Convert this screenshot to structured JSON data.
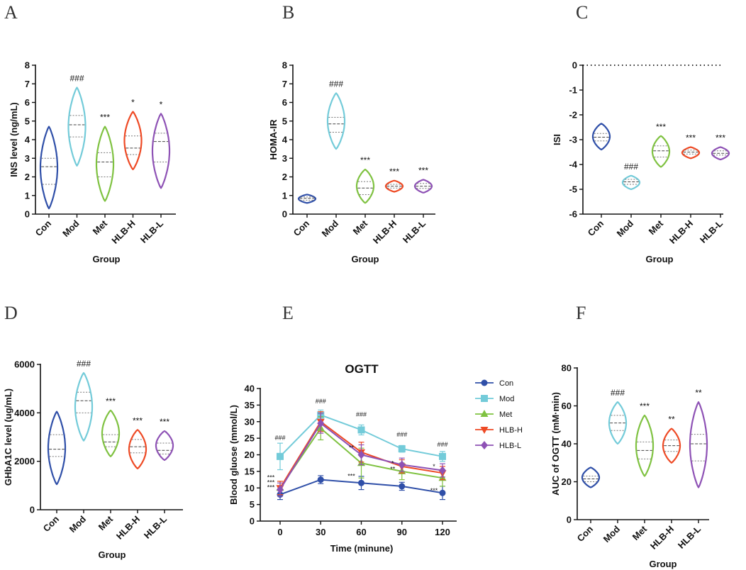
{
  "colors": {
    "Con": "#2f4fa8",
    "Mod": "#73cbd9",
    "Met": "#7fc241",
    "HLB-H": "#ee4a25",
    "HLB-L": "#8e52b5",
    "axis": "#111111"
  },
  "chart_data": [
    {
      "panel": "A",
      "type": "violin",
      "ylabel": "INS level (ng/mL)",
      "xlabel": "Group",
      "ylim": [
        0,
        8
      ],
      "yticks": [
        0,
        1,
        2,
        3,
        4,
        5,
        6,
        7,
        8
      ],
      "categories": [
        "Con",
        "Mod",
        "Met",
        "HLB-H",
        "HLB-L"
      ],
      "groups": [
        {
          "name": "Con",
          "min": 0.3,
          "max": 4.7,
          "median": 2.55,
          "q1": 1.6,
          "q3": 3.0,
          "sig": ""
        },
        {
          "name": "Mod",
          "min": 2.6,
          "max": 6.8,
          "median": 4.8,
          "q1": 4.15,
          "q3": 5.3,
          "sig": "###"
        },
        {
          "name": "Met",
          "min": 0.7,
          "max": 4.7,
          "median": 2.8,
          "q1": 2.0,
          "q3": 3.3,
          "sig": "***"
        },
        {
          "name": "HLB-H",
          "min": 2.4,
          "max": 5.5,
          "median": 3.55,
          "q1": 3.2,
          "q3": 4.2,
          "sig": "*"
        },
        {
          "name": "HLB-L",
          "min": 1.4,
          "max": 5.4,
          "median": 3.9,
          "q1": 2.8,
          "q3": 4.35,
          "sig": "*"
        }
      ]
    },
    {
      "panel": "B",
      "type": "violin",
      "ylabel": "HOMA-IR",
      "xlabel": "Group",
      "ylim": [
        0,
        8
      ],
      "yticks": [
        0,
        1,
        2,
        3,
        4,
        5,
        6,
        7,
        8
      ],
      "categories": [
        "Con",
        "Mod",
        "Met",
        "HLB-H",
        "HLB-L"
      ],
      "groups": [
        {
          "name": "Con",
          "min": 0.6,
          "max": 1.05,
          "median": 0.85,
          "q1": 0.75,
          "q3": 0.92,
          "sig": ""
        },
        {
          "name": "Mod",
          "min": 3.5,
          "max": 6.5,
          "median": 4.85,
          "q1": 4.4,
          "q3": 5.2,
          "sig": "###"
        },
        {
          "name": "Met",
          "min": 0.6,
          "max": 2.4,
          "median": 1.4,
          "q1": 1.05,
          "q3": 1.75,
          "sig": "***"
        },
        {
          "name": "HLB-H",
          "min": 1.2,
          "max": 1.8,
          "median": 1.5,
          "q1": 1.4,
          "q3": 1.6,
          "sig": "***"
        },
        {
          "name": "HLB-L",
          "min": 1.15,
          "max": 1.85,
          "median": 1.5,
          "q1": 1.38,
          "q3": 1.65,
          "sig": "***"
        }
      ]
    },
    {
      "panel": "C",
      "type": "violin",
      "ylabel": "ISI",
      "xlabel": "Group",
      "ylim": [
        -6,
        0
      ],
      "yticks": [
        -6,
        -5,
        -4,
        -3,
        -2,
        -1,
        0
      ],
      "reference_line": 0,
      "categories": [
        "Con",
        "Mod",
        "Met",
        "HLB-H",
        "HLB-L"
      ],
      "groups": [
        {
          "name": "Con",
          "min": -3.4,
          "max": -2.35,
          "median": -2.9,
          "q1": -3.05,
          "q3": -2.75,
          "sig": ""
        },
        {
          "name": "Mod",
          "min": -5.0,
          "max": -4.45,
          "median": -4.7,
          "q1": -4.8,
          "q3": -4.6,
          "sig": "###"
        },
        {
          "name": "Met",
          "min": -4.1,
          "max": -2.85,
          "median": -3.45,
          "q1": -3.7,
          "q3": -3.25,
          "sig": "***"
        },
        {
          "name": "HLB-H",
          "min": -3.75,
          "max": -3.3,
          "median": -3.5,
          "q1": -3.58,
          "q3": -3.42,
          "sig": "***"
        },
        {
          "name": "HLB-L",
          "min": -3.8,
          "max": -3.3,
          "median": -3.55,
          "q1": -3.62,
          "q3": -3.45,
          "sig": "***"
        }
      ]
    },
    {
      "panel": "D",
      "type": "violin",
      "ylabel": "GHbA1C level (ug/mL)",
      "xlabel": "Group",
      "ylim": [
        0,
        6000
      ],
      "yticks": [
        0,
        2000,
        4000,
        6000
      ],
      "categories": [
        "Con",
        "Mod",
        "Met",
        "HLB-H",
        "HLB-L"
      ],
      "groups": [
        {
          "name": "Con",
          "min": 1050,
          "max": 4050,
          "median": 2500,
          "q1": 2200,
          "q3": 3100,
          "sig": ""
        },
        {
          "name": "Mod",
          "min": 2850,
          "max": 5650,
          "median": 4500,
          "q1": 4000,
          "q3": 4850,
          "sig": "###"
        },
        {
          "name": "Met",
          "min": 2200,
          "max": 4100,
          "median": 2800,
          "q1": 2600,
          "q3": 3100,
          "sig": "***"
        },
        {
          "name": "HLB-H",
          "min": 1700,
          "max": 3300,
          "median": 2600,
          "q1": 2350,
          "q3": 2900,
          "sig": "***"
        },
        {
          "name": "HLB-L",
          "min": 2050,
          "max": 3250,
          "median": 2450,
          "q1": 2300,
          "q3": 2750,
          "sig": "***"
        }
      ]
    },
    {
      "panel": "E",
      "type": "line",
      "title": "OGTT",
      "ylabel": "Blood gluose (mmol/L)",
      "xlabel": "Time (minune)",
      "x": [
        0,
        30,
        60,
        90,
        120
      ],
      "xticks": [
        0,
        30,
        60,
        90,
        120
      ],
      "ylim": [
        0,
        40
      ],
      "yticks": [
        0,
        5,
        10,
        15,
        20,
        25,
        30,
        35,
        40
      ],
      "series": [
        {
          "name": "Con",
          "values": [
            8.0,
            12.5,
            11.5,
            10.5,
            8.5
          ],
          "err": [
            1.5,
            1.2,
            2.0,
            1.2,
            2.0
          ],
          "marker": "circle"
        },
        {
          "name": "Mod",
          "values": [
            19.5,
            32.0,
            27.5,
            21.8,
            19.5
          ],
          "err": [
            4.0,
            1.5,
            1.5,
            1.0,
            1.5
          ],
          "marker": "square"
        },
        {
          "name": "Met",
          "values": [
            10.0,
            28.0,
            17.5,
            15.0,
            13.0
          ],
          "err": [
            2.0,
            3.5,
            4.5,
            2.5,
            2.5
          ],
          "marker": "triangle"
        },
        {
          "name": "HLB-H",
          "values": [
            10.0,
            30.0,
            20.8,
            16.5,
            14.5
          ],
          "err": [
            2.0,
            3.0,
            3.0,
            2.0,
            2.0
          ],
          "marker": "triangle-down"
        },
        {
          "name": "HLB-L",
          "values": [
            9.5,
            29.5,
            20.0,
            17.0,
            15.3
          ],
          "err": [
            2.0,
            3.0,
            3.0,
            2.0,
            2.0
          ],
          "marker": "diamond"
        }
      ],
      "annotations": {
        "hash": [
          "###",
          "###",
          "###",
          "###",
          "###"
        ],
        "t0_stars": [
          "***",
          "***",
          "***"
        ],
        "t60_stars": [
          "**",
          "***"
        ],
        "t90_stars": [
          "*",
          "**"
        ],
        "t120_stars": [
          "*",
          "***"
        ]
      },
      "legend": [
        "Con",
        "Mod",
        "Met",
        "HLB-H",
        "HLB-L"
      ]
    },
    {
      "panel": "F",
      "type": "violin",
      "ylabel": "AUC of OGTT (mM·min)",
      "xlabel": "Group",
      "ylim": [
        0,
        80
      ],
      "yticks": [
        0,
        20,
        40,
        60,
        80
      ],
      "categories": [
        "Con",
        "Mod",
        "Met",
        "HLB-H",
        "HLB-L"
      ],
      "groups": [
        {
          "name": "Con",
          "min": 17,
          "max": 27.5,
          "median": 21.5,
          "q1": 20,
          "q3": 23,
          "sig": ""
        },
        {
          "name": "Mod",
          "min": 40,
          "max": 62,
          "median": 51,
          "q1": 47,
          "q3": 55,
          "sig": "###"
        },
        {
          "name": "Met",
          "min": 23,
          "max": 55,
          "median": 36.5,
          "q1": 32,
          "q3": 41,
          "sig": "***"
        },
        {
          "name": "HLB-H",
          "min": 30,
          "max": 48,
          "median": 39,
          "q1": 36,
          "q3": 42,
          "sig": "**"
        },
        {
          "name": "HLB-L",
          "min": 17,
          "max": 62,
          "median": 40,
          "q1": 31,
          "q3": 45,
          "sig": "**"
        }
      ]
    }
  ]
}
